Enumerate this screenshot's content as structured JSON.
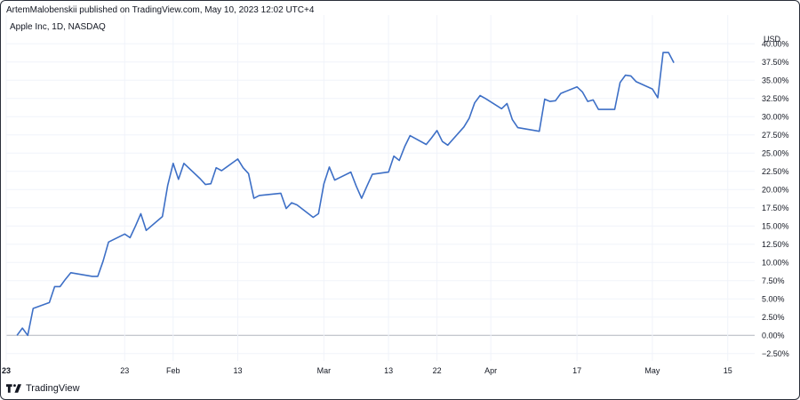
{
  "header": {
    "publisher": "ArtemMalobenskii published on TradingView.com, May 10, 2023 12:02 UTC+4",
    "symbol": "Apple Inc, 1D, NASDAQ"
  },
  "footer": {
    "brand": "TradingView",
    "logo_icon": "tradingview-logo-icon"
  },
  "colors": {
    "line": "#3d6fc6",
    "grid": "#f0f3fa",
    "zero": "#b2b5be",
    "text": "#131722"
  },
  "chart_data": {
    "type": "line",
    "y_unit": "USD",
    "ylim": [
      -3.5,
      41.5
    ],
    "y_ticks": [
      "40.00%",
      "37.50%",
      "35.00%",
      "32.50%",
      "30.00%",
      "27.50%",
      "25.00%",
      "22.50%",
      "20.00%",
      "17.50%",
      "15.00%",
      "12.50%",
      "10.00%",
      "7.50%",
      "5.00%",
      "2.50%",
      "0.00%",
      "−2.50%"
    ],
    "y_tick_values": [
      40,
      37.5,
      35,
      32.5,
      30,
      27.5,
      25,
      22.5,
      20,
      17.5,
      15,
      12.5,
      10,
      7.5,
      5,
      2.5,
      0,
      -2.5
    ],
    "x_ticks": [
      {
        "label": "23",
        "date": "2023-01-01",
        "bold": true
      },
      {
        "label": "23",
        "date": "2023-01-23",
        "bold": false
      },
      {
        "label": "Feb",
        "date": "2023-02-01",
        "bold": false
      },
      {
        "label": "13",
        "date": "2023-02-13",
        "bold": false
      },
      {
        "label": "Mar",
        "date": "2023-03-01",
        "bold": false
      },
      {
        "label": "13",
        "date": "2023-03-13",
        "bold": false
      },
      {
        "label": "22",
        "date": "2023-03-22",
        "bold": false
      },
      {
        "label": "Apr",
        "date": "2023-04-01",
        "bold": false
      },
      {
        "label": "17",
        "date": "2023-04-17",
        "bold": false
      },
      {
        "label": "May",
        "date": "2023-05-01",
        "bold": false
      },
      {
        "label": "15",
        "date": "2023-05-15",
        "bold": false
      }
    ],
    "grid": true,
    "series": [
      {
        "points": [
          [
            "2023-01-03",
            0.0
          ],
          [
            "2023-01-04",
            1.0
          ],
          [
            "2023-01-05",
            0.0
          ],
          [
            "2023-01-06",
            3.7
          ],
          [
            "2023-01-09",
            4.5
          ],
          [
            "2023-01-10",
            6.7
          ],
          [
            "2023-01-11",
            6.7
          ],
          [
            "2023-01-12",
            7.7
          ],
          [
            "2023-01-13",
            8.6
          ],
          [
            "2023-01-17",
            8.1
          ],
          [
            "2023-01-18",
            8.1
          ],
          [
            "2023-01-19",
            10.2
          ],
          [
            "2023-01-20",
            12.8
          ],
          [
            "2023-01-23",
            13.9
          ],
          [
            "2023-01-24",
            13.4
          ],
          [
            "2023-01-25",
            15.0
          ],
          [
            "2023-01-26",
            16.7
          ],
          [
            "2023-01-27",
            14.4
          ],
          [
            "2023-01-30",
            16.3
          ],
          [
            "2023-01-31",
            20.6
          ],
          [
            "2023-02-01",
            23.6
          ],
          [
            "2023-02-02",
            21.4
          ],
          [
            "2023-02-03",
            23.6
          ],
          [
            "2023-02-06",
            21.5
          ],
          [
            "2023-02-07",
            20.7
          ],
          [
            "2023-02-08",
            20.8
          ],
          [
            "2023-02-09",
            23.0
          ],
          [
            "2023-02-10",
            22.6
          ],
          [
            "2023-02-13",
            24.2
          ],
          [
            "2023-02-14",
            23.0
          ],
          [
            "2023-02-15",
            22.2
          ],
          [
            "2023-02-16",
            18.8
          ],
          [
            "2023-02-17",
            19.2
          ],
          [
            "2023-02-21",
            19.5
          ],
          [
            "2023-02-22",
            17.4
          ],
          [
            "2023-02-23",
            18.2
          ],
          [
            "2023-02-24",
            17.9
          ],
          [
            "2023-02-27",
            16.2
          ],
          [
            "2023-02-28",
            16.7
          ],
          [
            "2023-03-01",
            20.8
          ],
          [
            "2023-03-02",
            23.1
          ],
          [
            "2023-03-03",
            21.3
          ],
          [
            "2023-03-06",
            22.4
          ],
          [
            "2023-03-07",
            20.5
          ],
          [
            "2023-03-08",
            18.8
          ],
          [
            "2023-03-09",
            20.5
          ],
          [
            "2023-03-10",
            22.1
          ],
          [
            "2023-03-13",
            22.4
          ],
          [
            "2023-03-14",
            24.6
          ],
          [
            "2023-03-15",
            24.0
          ],
          [
            "2023-03-16",
            25.9
          ],
          [
            "2023-03-17",
            27.4
          ],
          [
            "2023-03-20",
            26.2
          ],
          [
            "2023-03-21",
            27.1
          ],
          [
            "2023-03-22",
            28.1
          ],
          [
            "2023-03-23",
            26.6
          ],
          [
            "2023-03-24",
            26.1
          ],
          [
            "2023-03-27",
            28.6
          ],
          [
            "2023-03-28",
            29.8
          ],
          [
            "2023-03-29",
            31.9
          ],
          [
            "2023-03-30",
            32.9
          ],
          [
            "2023-03-31",
            32.5
          ],
          [
            "2023-04-03",
            31.1
          ],
          [
            "2023-04-04",
            31.8
          ],
          [
            "2023-04-05",
            29.6
          ],
          [
            "2023-04-06",
            28.5
          ],
          [
            "2023-04-10",
            28.0
          ],
          [
            "2023-04-11",
            32.4
          ],
          [
            "2023-04-12",
            32.1
          ],
          [
            "2023-04-13",
            32.2
          ],
          [
            "2023-04-14",
            33.2
          ],
          [
            "2023-04-17",
            34.1
          ],
          [
            "2023-04-18",
            33.4
          ],
          [
            "2023-04-19",
            32.1
          ],
          [
            "2023-04-20",
            32.3
          ],
          [
            "2023-04-21",
            31.0
          ],
          [
            "2023-04-24",
            31.0
          ],
          [
            "2023-04-25",
            34.7
          ],
          [
            "2023-04-26",
            35.7
          ],
          [
            "2023-04-27",
            35.6
          ],
          [
            "2023-04-28",
            34.8
          ],
          [
            "2023-05-01",
            33.8
          ],
          [
            "2023-05-02",
            32.6
          ],
          [
            "2023-05-03",
            38.8
          ],
          [
            "2023-05-04",
            38.8
          ],
          [
            "2023-05-05",
            37.4
          ]
        ]
      }
    ]
  }
}
